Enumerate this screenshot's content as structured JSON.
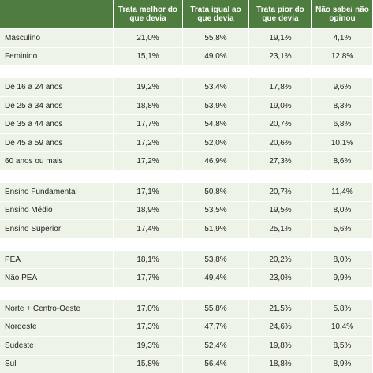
{
  "table": {
    "columns": [
      "Trata melhor do que devia",
      "Trata igual ao que devia",
      "Trata pior do que devia",
      "Não sabe/ não opinou"
    ],
    "groups": [
      [
        [
          "Masculino",
          "21,0%",
          "55,8%",
          "19,1%",
          "4,1%"
        ],
        [
          "Feminino",
          "15,1%",
          "49,0%",
          "23,1%",
          "12,8%"
        ]
      ],
      [
        [
          "De 16 a 24 anos",
          "19,2%",
          "53,4%",
          "17,8%",
          "9,6%"
        ],
        [
          "De 25 a 34 anos",
          "18,8%",
          "53,9%",
          "19,0%",
          "8,3%"
        ],
        [
          "De 35 a 44 anos",
          "17,7%",
          "54,8%",
          "20,7%",
          "6,8%"
        ],
        [
          "De 45 a 59 anos",
          "17,2%",
          "52,0%",
          "20,6%",
          "10,1%"
        ],
        [
          "60 anos ou mais",
          "17,2%",
          "46,9%",
          "27,3%",
          "8,6%"
        ]
      ],
      [
        [
          "Ensino Fundamental",
          "17,1%",
          "50,8%",
          "20,7%",
          "11,4%"
        ],
        [
          "Ensino Médio",
          "18,9%",
          "53,5%",
          "19,5%",
          "8,0%"
        ],
        [
          "Ensino Superior",
          "17,4%",
          "51,9%",
          "25,1%",
          "5,6%"
        ]
      ],
      [
        [
          "PEA",
          "18,1%",
          "53,8%",
          "20,2%",
          "8,0%"
        ],
        [
          "Não PEA",
          "17,7%",
          "49,4%",
          "23,0%",
          "9,9%"
        ]
      ],
      [
        [
          "Norte + Centro-Oeste",
          "17,0%",
          "55,8%",
          "21,5%",
          "5,8%"
        ],
        [
          "Nordeste",
          "17,3%",
          "47,7%",
          "24,6%",
          "10,4%"
        ],
        [
          "Sudeste",
          "19,3%",
          "52,4%",
          "19,8%",
          "8,5%"
        ],
        [
          "Sul",
          "15,8%",
          "56,4%",
          "18,8%",
          "8,9%"
        ]
      ]
    ]
  }
}
